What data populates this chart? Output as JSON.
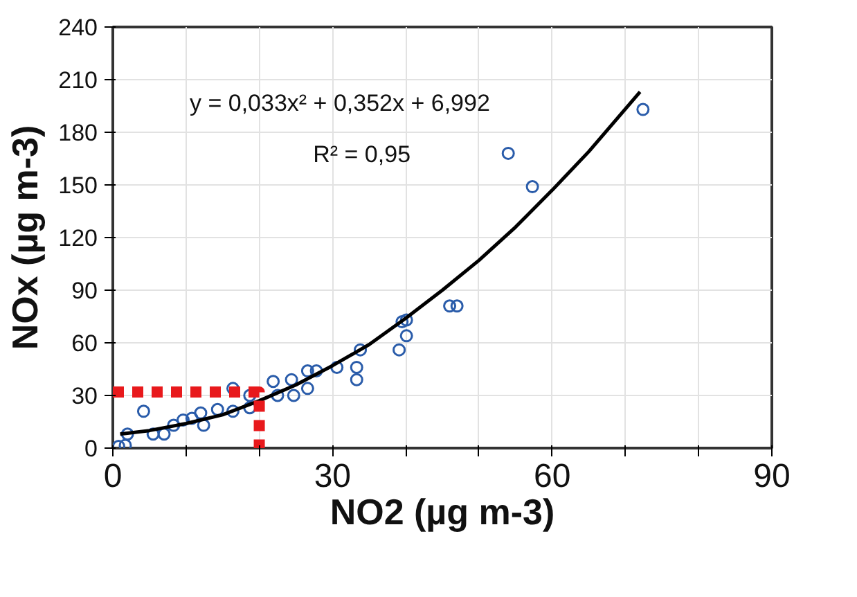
{
  "chart_data": {
    "type": "scatter",
    "xlabel": "NO2 (µg m-3)",
    "ylabel": "NOx (µg m-3)",
    "xlim": [
      0,
      90
    ],
    "ylim": [
      0,
      240
    ],
    "xticks": [
      0,
      {
        "value": 10,
        "label": null
      },
      {
        "value": 20,
        "label": null
      },
      30,
      {
        "value": 40,
        "label": null
      },
      {
        "value": 50,
        "label": null
      },
      60,
      {
        "value": 70,
        "label": null
      },
      {
        "value": 80,
        "label": null
      },
      90
    ],
    "yticks": [
      0,
      30,
      60,
      90,
      120,
      150,
      180,
      210,
      240
    ],
    "grid": true,
    "marker": "circle",
    "annotations": [
      "y = 0,033x² + 0,352x + 6,992",
      "R² = 0,95"
    ],
    "series": [
      {
        "color": "#2a5caa",
        "x": [
          0.8,
          1.7,
          2,
          4.2,
          5.5,
          7,
          8.3,
          9.6,
          10.8,
          12,
          12.4,
          14.3,
          16.4,
          16.4,
          18.7,
          18.7,
          21.9,
          22.5,
          24.4,
          24.7,
          26.6,
          26.6,
          27.8,
          30.6,
          33.3,
          33.3,
          33.8,
          39.1,
          39.5,
          40.1,
          40.1,
          46,
          47,
          54,
          57.3,
          72.4
        ],
        "values": [
          1,
          1.6,
          8,
          21,
          8,
          8,
          13,
          16,
          17,
          20,
          13,
          22,
          21,
          34,
          23,
          30,
          38,
          30,
          39,
          30,
          44,
          34,
          44,
          46,
          46,
          39,
          56,
          56,
          72,
          64,
          73,
          81,
          81,
          168,
          149,
          193
        ]
      },
      {
        "type": "line",
        "color": "#000000",
        "marker": "none",
        "line_style": "solid",
        "x": [
          1,
          5,
          10,
          15,
          20,
          25,
          30,
          35,
          40,
          45,
          50,
          55,
          60,
          65,
          72
        ],
        "values": [
          8,
          10,
          14,
          19,
          27,
          36,
          47,
          59,
          74,
          90,
          107,
          126,
          147,
          169,
          203
        ]
      },
      {
        "type": "line",
        "color": "#e8191c",
        "marker": "none",
        "line_style": "dashed",
        "x": [
          0,
          20,
          20
        ],
        "values": [
          32,
          32,
          0
        ]
      }
    ]
  }
}
